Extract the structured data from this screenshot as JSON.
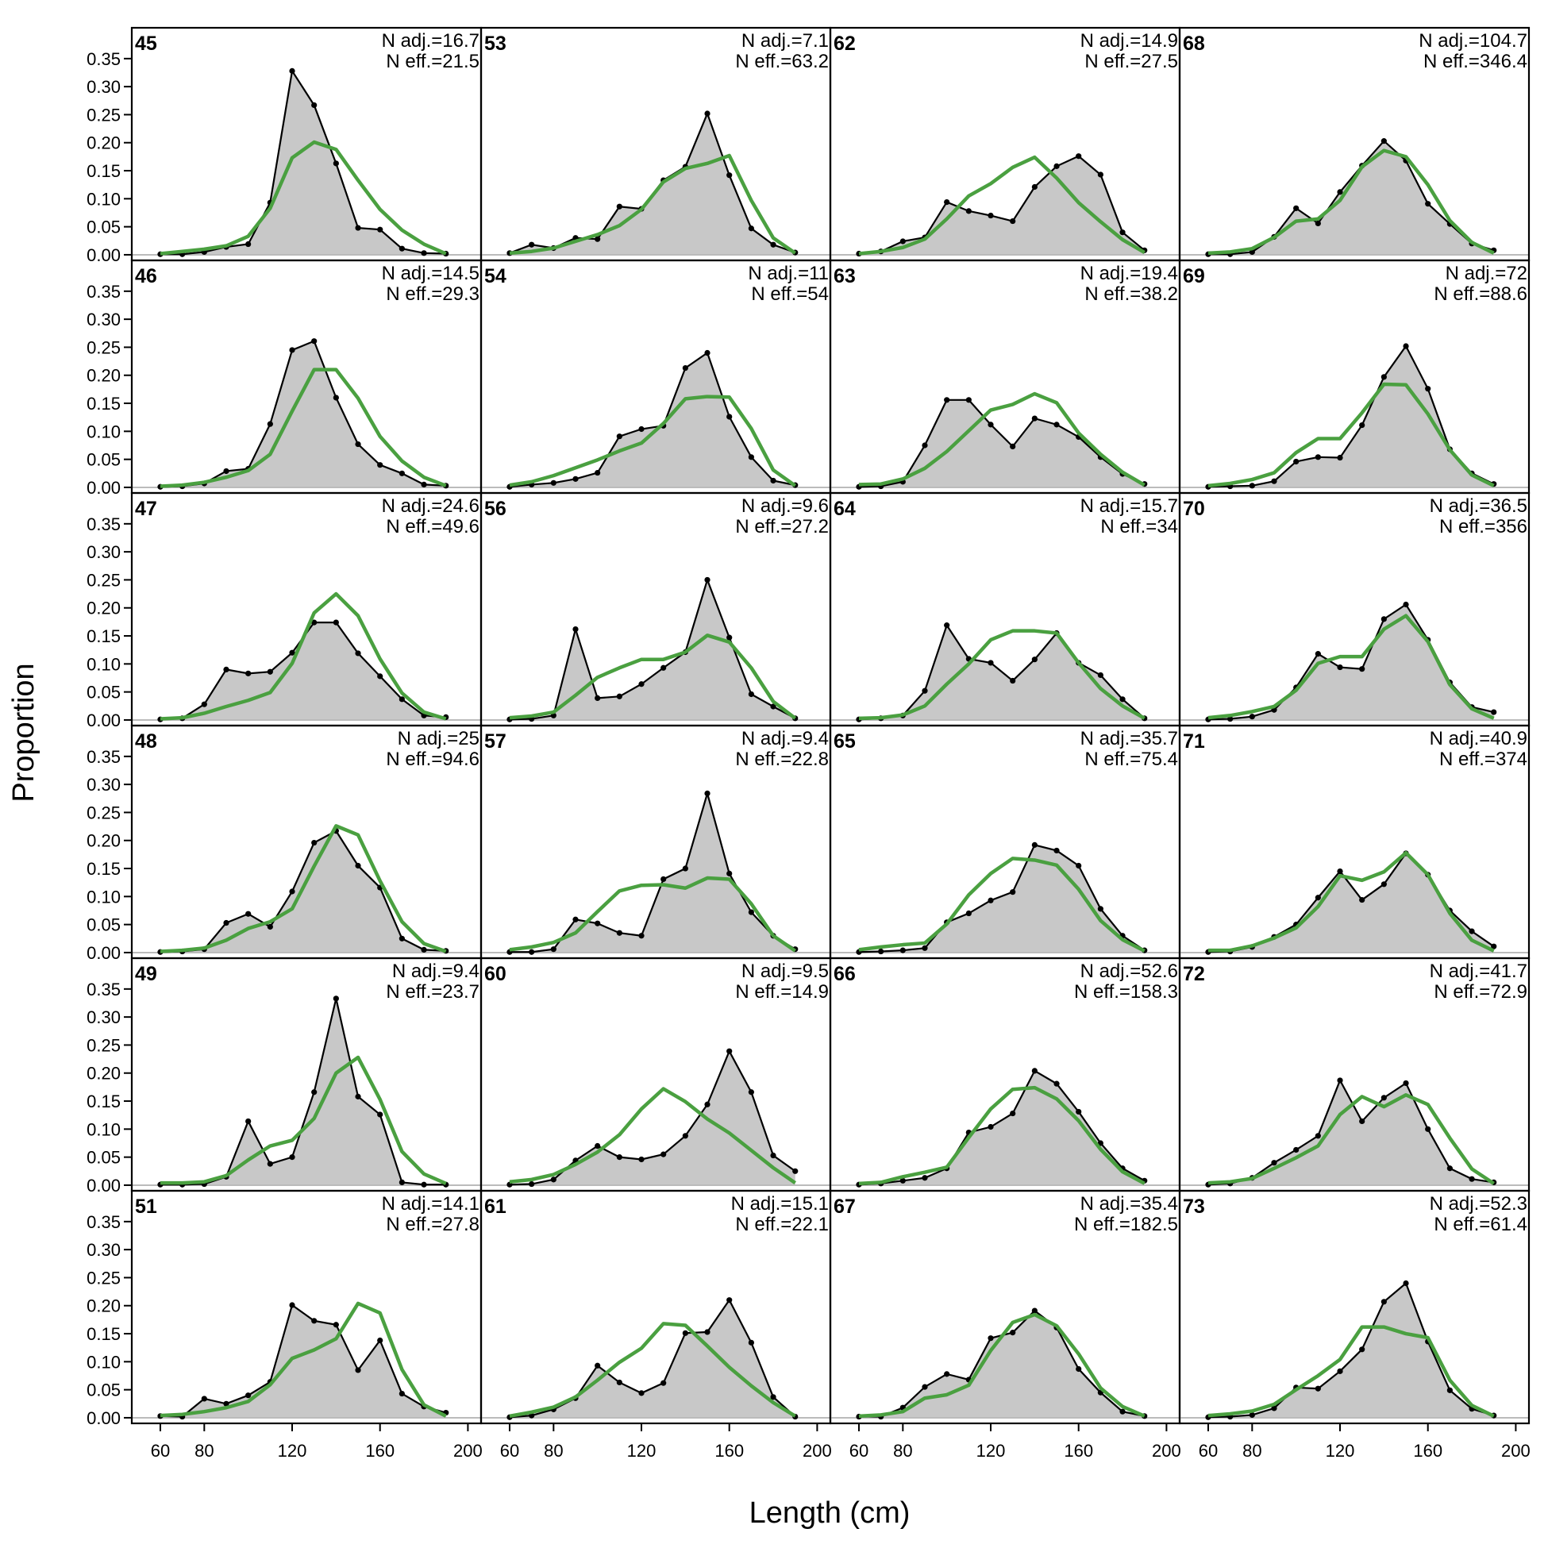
{
  "chart_data": {
    "type": "area",
    "xlabel": "Length (cm)",
    "ylabel": "Proportion",
    "xlim": [
      47,
      206
    ],
    "ylim": [
      -0.01,
      0.405
    ],
    "x_ticks": [
      60,
      80,
      120,
      160,
      200
    ],
    "y_ticks": [
      "0.00",
      "0.05",
      "0.10",
      "0.15",
      "0.20",
      "0.25",
      "0.30",
      "0.35"
    ],
    "x": [
      60,
      70,
      80,
      90,
      100,
      110,
      120,
      130,
      140,
      150,
      160,
      170,
      180,
      190
    ],
    "colors": {
      "observed_fill": "#c8c8c8",
      "observed_line": "#000000",
      "expected_line": "#4aa040",
      "zero_line": "#bbbbbb"
    },
    "layout": {
      "columns": 4,
      "rows": 6
    },
    "panels": [
      {
        "id": "45",
        "n_adj": "N adj.=16.7",
        "n_eff": "N eff.=21.5",
        "observed": [
          0.001,
          0.001,
          0.005,
          0.014,
          0.019,
          0.093,
          0.328,
          0.267,
          0.163,
          0.048,
          0.045,
          0.011,
          0.003,
          0.002
        ],
        "expected": [
          0.002,
          0.006,
          0.01,
          0.016,
          0.033,
          0.083,
          0.173,
          0.201,
          0.188,
          0.133,
          0.081,
          0.044,
          0.019,
          0.002
        ]
      },
      {
        "id": "46",
        "n_adj": "N adj.=14.5",
        "n_eff": "N eff.=29.3",
        "observed": [
          0.001,
          0.002,
          0.007,
          0.029,
          0.033,
          0.113,
          0.245,
          0.261,
          0.16,
          0.077,
          0.04,
          0.025,
          0.005,
          0.003
        ],
        "expected": [
          0.002,
          0.004,
          0.009,
          0.018,
          0.03,
          0.059,
          0.136,
          0.21,
          0.21,
          0.159,
          0.091,
          0.047,
          0.018,
          0.003
        ]
      },
      {
        "id": "47",
        "n_adj": "N adj.=24.6",
        "n_eff": "N eff.=49.6",
        "observed": [
          0.001,
          0.003,
          0.028,
          0.09,
          0.083,
          0.086,
          0.12,
          0.174,
          0.174,
          0.119,
          0.078,
          0.037,
          0.008,
          0.005
        ],
        "expected": [
          0.002,
          0.004,
          0.012,
          0.024,
          0.035,
          0.049,
          0.101,
          0.191,
          0.225,
          0.186,
          0.109,
          0.048,
          0.014,
          0.002
        ]
      },
      {
        "id": "48",
        "n_adj": "N adj.=25",
        "n_eff": "N eff.=94.6",
        "observed": [
          0.001,
          0.002,
          0.006,
          0.053,
          0.069,
          0.046,
          0.109,
          0.196,
          0.217,
          0.155,
          0.116,
          0.025,
          0.005,
          0.003
        ],
        "expected": [
          0.002,
          0.004,
          0.008,
          0.022,
          0.043,
          0.055,
          0.078,
          0.154,
          0.226,
          0.21,
          0.128,
          0.055,
          0.016,
          0.002
        ]
      },
      {
        "id": "49",
        "n_adj": "N adj.=9.4",
        "n_eff": "N eff.=23.7",
        "observed": [
          0.001,
          0.001,
          0.002,
          0.015,
          0.114,
          0.038,
          0.05,
          0.166,
          0.333,
          0.158,
          0.126,
          0.005,
          0.001,
          0.001
        ],
        "expected": [
          0.004,
          0.004,
          0.006,
          0.017,
          0.045,
          0.07,
          0.08,
          0.119,
          0.2,
          0.228,
          0.153,
          0.06,
          0.02,
          0.003
        ]
      },
      {
        "id": "51",
        "n_adj": "N adj.=14.1",
        "n_eff": "N eff.=27.8",
        "observed": [
          0.003,
          0.002,
          0.034,
          0.025,
          0.04,
          0.064,
          0.201,
          0.173,
          0.166,
          0.085,
          0.138,
          0.043,
          0.02,
          0.009
        ],
        "expected": [
          0.004,
          0.006,
          0.011,
          0.018,
          0.029,
          0.059,
          0.106,
          0.121,
          0.141,
          0.204,
          0.187,
          0.086,
          0.023,
          0.003
        ]
      },
      {
        "id": "53",
        "n_adj": "N adj.=7.1",
        "n_eff": "N eff.=63.2",
        "observed": [
          0.003,
          0.018,
          0.012,
          0.03,
          0.028,
          0.086,
          0.082,
          0.133,
          0.157,
          0.252,
          0.142,
          0.047,
          0.018,
          0.004
        ],
        "expected": [
          0.003,
          0.006,
          0.012,
          0.024,
          0.036,
          0.052,
          0.081,
          0.13,
          0.154,
          0.163,
          0.177,
          0.097,
          0.03,
          0.003
        ]
      },
      {
        "id": "54",
        "n_adj": "N adj.=11",
        "n_eff": "N eff.=54",
        "observed": [
          0.001,
          0.005,
          0.008,
          0.015,
          0.026,
          0.091,
          0.104,
          0.11,
          0.213,
          0.24,
          0.126,
          0.054,
          0.012,
          0.004
        ],
        "expected": [
          0.004,
          0.01,
          0.021,
          0.035,
          0.049,
          0.065,
          0.079,
          0.114,
          0.158,
          0.162,
          0.161,
          0.105,
          0.031,
          0.003
        ]
      },
      {
        "id": "56",
        "n_adj": "N adj.=9.6",
        "n_eff": "N eff.=27.2",
        "observed": [
          0.001,
          0.002,
          0.008,
          0.162,
          0.039,
          0.042,
          0.064,
          0.093,
          0.121,
          0.25,
          0.147,
          0.046,
          0.024,
          0.003
        ],
        "expected": [
          0.004,
          0.007,
          0.014,
          0.044,
          0.076,
          0.093,
          0.108,
          0.108,
          0.121,
          0.151,
          0.139,
          0.093,
          0.033,
          0.003
        ]
      },
      {
        "id": "57",
        "n_adj": "N adj.=9.4",
        "n_eff": "N eff.=22.8",
        "observed": [
          0.001,
          0.001,
          0.006,
          0.059,
          0.052,
          0.035,
          0.03,
          0.131,
          0.15,
          0.284,
          0.141,
          0.072,
          0.03,
          0.006
        ],
        "expected": [
          0.005,
          0.01,
          0.018,
          0.035,
          0.073,
          0.11,
          0.12,
          0.121,
          0.115,
          0.133,
          0.131,
          0.087,
          0.03,
          0.003
        ]
      },
      {
        "id": "60",
        "n_adj": "N adj.=9.5",
        "n_eff": "N eff.=14.9",
        "observed": [
          0.001,
          0.002,
          0.01,
          0.044,
          0.07,
          0.05,
          0.046,
          0.055,
          0.088,
          0.144,
          0.239,
          0.166,
          0.053,
          0.025
        ],
        "expected": [
          0.006,
          0.01,
          0.019,
          0.037,
          0.059,
          0.09,
          0.136,
          0.172,
          0.149,
          0.118,
          0.093,
          0.062,
          0.031,
          0.004
        ]
      },
      {
        "id": "61",
        "n_adj": "N adj.=15.1",
        "n_eff": "N eff.=22.1",
        "observed": [
          0.001,
          0.004,
          0.015,
          0.035,
          0.093,
          0.063,
          0.044,
          0.062,
          0.151,
          0.153,
          0.21,
          0.134,
          0.037,
          0.002
        ],
        "expected": [
          0.003,
          0.01,
          0.019,
          0.037,
          0.067,
          0.099,
          0.124,
          0.168,
          0.165,
          0.128,
          0.09,
          0.057,
          0.027,
          0.003
        ]
      },
      {
        "id": "62",
        "n_adj": "N adj.=14.9",
        "n_eff": "N eff.=27.5",
        "observed": [
          0.002,
          0.006,
          0.024,
          0.031,
          0.094,
          0.078,
          0.07,
          0.06,
          0.121,
          0.158,
          0.176,
          0.143,
          0.04,
          0.008
        ],
        "expected": [
          0.002,
          0.006,
          0.013,
          0.028,
          0.064,
          0.105,
          0.127,
          0.156,
          0.174,
          0.137,
          0.093,
          0.059,
          0.027,
          0.004
        ]
      },
      {
        "id": "63",
        "n_adj": "N adj.=19.4",
        "n_eff": "N eff.=38.2",
        "observed": [
          0.001,
          0.002,
          0.01,
          0.075,
          0.156,
          0.156,
          0.112,
          0.073,
          0.123,
          0.112,
          0.09,
          0.054,
          0.024,
          0.006
        ],
        "expected": [
          0.005,
          0.006,
          0.015,
          0.034,
          0.064,
          0.101,
          0.138,
          0.148,
          0.167,
          0.151,
          0.097,
          0.059,
          0.027,
          0.004
        ]
      },
      {
        "id": "64",
        "n_adj": "N adj.=15.7",
        "n_eff": "N eff.=34",
        "observed": [
          0.001,
          0.003,
          0.008,
          0.052,
          0.169,
          0.109,
          0.102,
          0.07,
          0.108,
          0.155,
          0.102,
          0.08,
          0.037,
          0.003
        ],
        "expected": [
          0.003,
          0.004,
          0.009,
          0.025,
          0.064,
          0.1,
          0.143,
          0.159,
          0.159,
          0.155,
          0.102,
          0.056,
          0.025,
          0.003
        ]
      },
      {
        "id": "65",
        "n_adj": "N adj.=35.7",
        "n_eff": "N eff.=75.4",
        "observed": [
          0.001,
          0.002,
          0.004,
          0.008,
          0.054,
          0.07,
          0.093,
          0.108,
          0.192,
          0.182,
          0.155,
          0.078,
          0.03,
          0.004
        ],
        "expected": [
          0.005,
          0.01,
          0.014,
          0.017,
          0.051,
          0.103,
          0.141,
          0.168,
          0.165,
          0.156,
          0.113,
          0.057,
          0.023,
          0.003
        ]
      },
      {
        "id": "66",
        "n_adj": "N adj.=52.6",
        "n_eff": "N eff.=158.3",
        "observed": [
          0.001,
          0.003,
          0.008,
          0.013,
          0.03,
          0.094,
          0.104,
          0.128,
          0.204,
          0.181,
          0.131,
          0.075,
          0.03,
          0.008
        ],
        "expected": [
          0.003,
          0.005,
          0.015,
          0.023,
          0.032,
          0.085,
          0.136,
          0.171,
          0.174,
          0.154,
          0.115,
          0.064,
          0.024,
          0.003
        ]
      },
      {
        "id": "67",
        "n_adj": "N adj.=35.4",
        "n_eff": "N eff.=182.5",
        "observed": [
          0.002,
          0.002,
          0.018,
          0.055,
          0.078,
          0.068,
          0.142,
          0.152,
          0.191,
          0.161,
          0.087,
          0.045,
          0.011,
          0.003
        ],
        "expected": [
          0.003,
          0.005,
          0.011,
          0.035,
          0.041,
          0.058,
          0.12,
          0.17,
          0.184,
          0.164,
          0.114,
          0.053,
          0.02,
          0.003
        ]
      },
      {
        "id": "68",
        "n_adj": "N adj.=104.7",
        "n_eff": "N eff.=346.4",
        "observed": [
          0.001,
          0.001,
          0.005,
          0.032,
          0.083,
          0.056,
          0.112,
          0.159,
          0.203,
          0.168,
          0.091,
          0.055,
          0.02,
          0.008
        ],
        "expected": [
          0.003,
          0.005,
          0.011,
          0.031,
          0.06,
          0.064,
          0.097,
          0.157,
          0.186,
          0.175,
          0.125,
          0.061,
          0.022,
          0.003
        ]
      },
      {
        "id": "69",
        "n_adj": "N adj.=72",
        "n_eff": "N eff.=88.6",
        "observed": [
          0.001,
          0.002,
          0.003,
          0.011,
          0.046,
          0.054,
          0.053,
          0.111,
          0.197,
          0.252,
          0.176,
          0.068,
          0.025,
          0.006
        ],
        "expected": [
          0.003,
          0.007,
          0.014,
          0.026,
          0.062,
          0.087,
          0.087,
          0.133,
          0.184,
          0.183,
          0.131,
          0.067,
          0.022,
          0.003
        ]
      },
      {
        "id": "70",
        "n_adj": "N adj.=36.5",
        "n_eff": "N eff.=356",
        "observed": [
          0.001,
          0.002,
          0.006,
          0.018,
          0.058,
          0.118,
          0.094,
          0.091,
          0.18,
          0.206,
          0.143,
          0.067,
          0.023,
          0.014
        ],
        "expected": [
          0.004,
          0.008,
          0.015,
          0.024,
          0.053,
          0.101,
          0.113,
          0.113,
          0.162,
          0.186,
          0.14,
          0.063,
          0.02,
          0.003
        ]
      },
      {
        "id": "71",
        "n_adj": "N adj.=40.9",
        "n_eff": "N eff.=374",
        "observed": [
          0.001,
          0.002,
          0.01,
          0.028,
          0.05,
          0.098,
          0.145,
          0.094,
          0.122,
          0.177,
          0.139,
          0.075,
          0.038,
          0.011
        ],
        "expected": [
          0.004,
          0.004,
          0.012,
          0.026,
          0.044,
          0.082,
          0.137,
          0.129,
          0.144,
          0.178,
          0.139,
          0.07,
          0.022,
          0.003
        ]
      },
      {
        "id": "72",
        "n_adj": "N adj.=41.7",
        "n_eff": "N eff.=72.9",
        "observed": [
          0.001,
          0.003,
          0.013,
          0.04,
          0.063,
          0.088,
          0.187,
          0.114,
          0.156,
          0.182,
          0.1,
          0.03,
          0.011,
          0.005
        ],
        "expected": [
          0.004,
          0.006,
          0.012,
          0.03,
          0.049,
          0.07,
          0.126,
          0.158,
          0.14,
          0.161,
          0.144,
          0.084,
          0.029,
          0.003
        ]
      },
      {
        "id": "73",
        "n_adj": "N adj.=52.3",
        "n_eff": "N eff.=61.4",
        "observed": [
          0.001,
          0.002,
          0.005,
          0.017,
          0.054,
          0.052,
          0.083,
          0.122,
          0.207,
          0.24,
          0.136,
          0.049,
          0.016,
          0.004
        ],
        "expected": [
          0.004,
          0.007,
          0.012,
          0.024,
          0.05,
          0.075,
          0.104,
          0.162,
          0.162,
          0.15,
          0.143,
          0.067,
          0.022,
          0.003
        ]
      }
    ]
  }
}
